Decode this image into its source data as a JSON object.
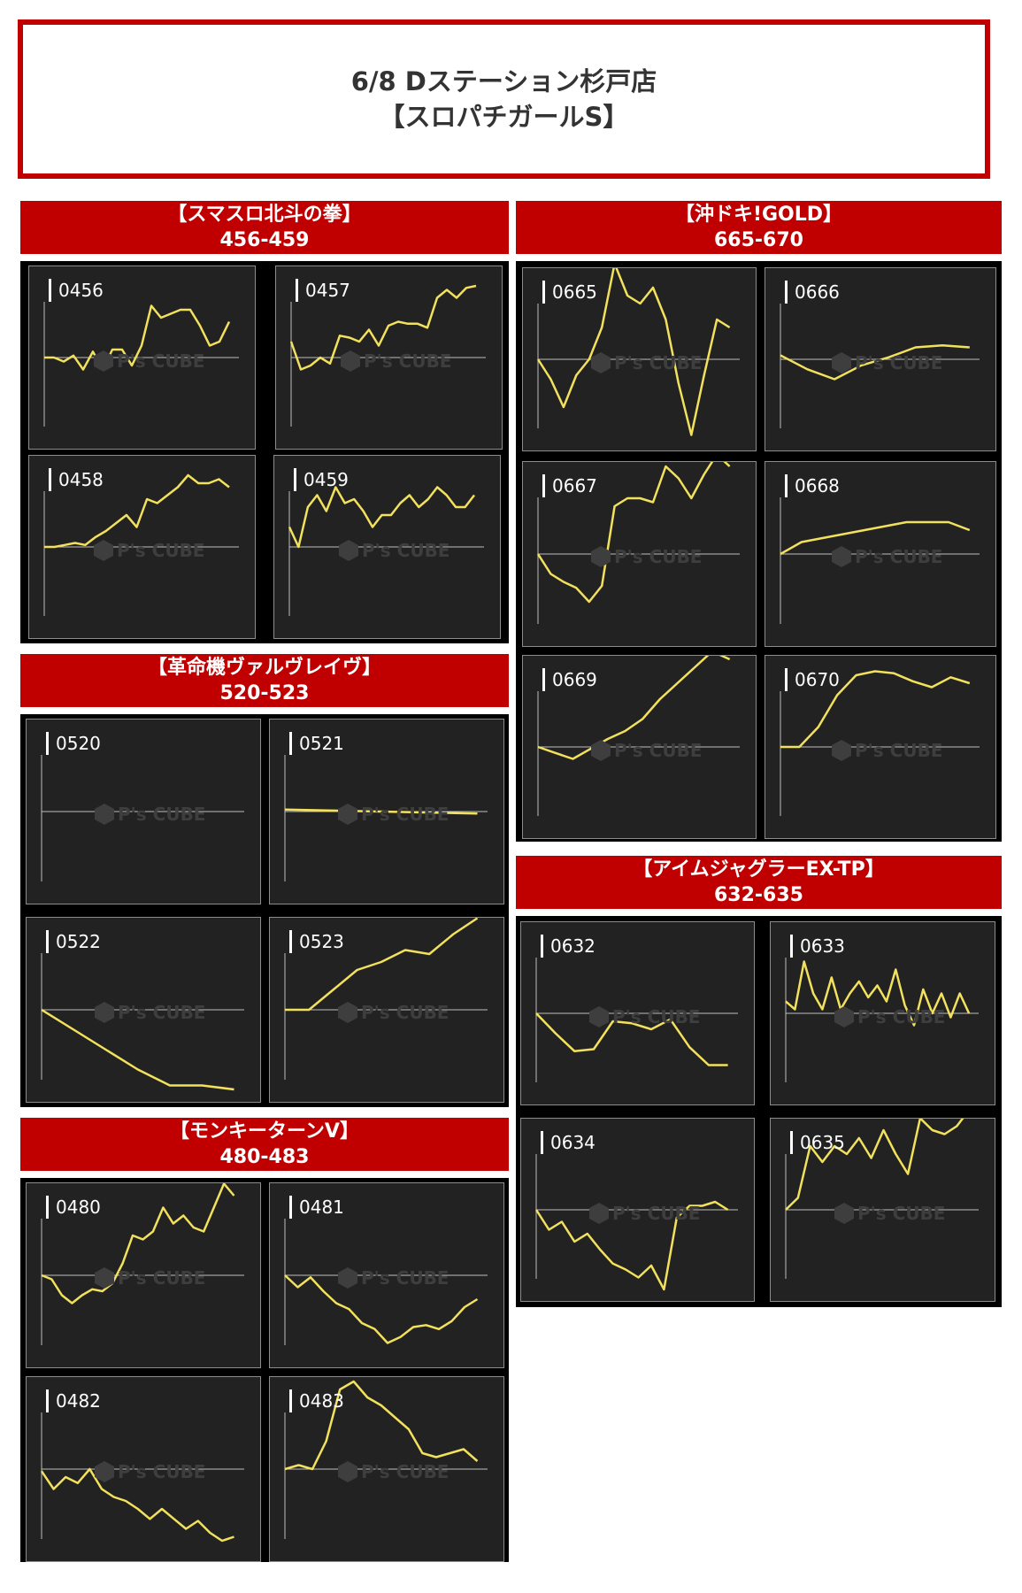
{
  "header": {
    "line1": "6/8 Dステーション杉戸店",
    "line2": "【スロパチガールS】"
  },
  "watermark": "P's CUBE",
  "line_color": "#f2e15c",
  "banner_color": "#c00000",
  "groups": [
    {
      "title": "【スマスロ北斗の拳】",
      "range": "456-459",
      "panels": [
        {
          "number": "0456"
        },
        {
          "number": "0457"
        },
        {
          "number": "0458"
        },
        {
          "number": "0459"
        }
      ]
    },
    {
      "title": "【革命機ヴァルヴレイヴ】",
      "range": "520-523",
      "panels": [
        {
          "number": "0520"
        },
        {
          "number": "0521"
        },
        {
          "number": "0522"
        },
        {
          "number": "0523"
        }
      ]
    },
    {
      "title": "【モンキーターンV】",
      "range": "480-483",
      "panels": [
        {
          "number": "0480"
        },
        {
          "number": "0481"
        },
        {
          "number": "0482"
        },
        {
          "number": "0483"
        }
      ]
    },
    {
      "title": "【沖ドキ!GOLD】",
      "range": "665-670",
      "panels": [
        {
          "number": "0665"
        },
        {
          "number": "0666"
        },
        {
          "number": "0667"
        },
        {
          "number": "0668"
        },
        {
          "number": "0669"
        },
        {
          "number": "0670"
        }
      ]
    },
    {
      "title": "【アイムジャグラーEX-TP】",
      "range": "632-635",
      "panels": [
        {
          "number": "0632"
        },
        {
          "number": "0633"
        },
        {
          "number": "0634"
        },
        {
          "number": "0635"
        }
      ]
    }
  ],
  "chart_data": [
    {
      "type": "line",
      "series_label": "0456",
      "y": [
        0.0,
        0.0,
        -0.1,
        0.05,
        -0.3,
        0.15,
        -0.3,
        0.2,
        0.2,
        -0.2,
        0.3,
        1.3,
        1.0,
        1.1,
        1.2,
        1.2,
        0.8,
        0.3,
        0.4,
        0.9
      ]
    },
    {
      "type": "line",
      "series_label": "0457",
      "y": [
        0.4,
        -0.3,
        -0.2,
        0.0,
        -0.15,
        0.55,
        0.5,
        0.4,
        0.7,
        0.3,
        0.8,
        0.9,
        0.85,
        0.85,
        0.75,
        1.5,
        1.7,
        1.5,
        1.75,
        1.8
      ]
    },
    {
      "type": "line",
      "series_label": "0458",
      "y": [
        0.0,
        0.0,
        0.05,
        0.1,
        0.05,
        0.25,
        0.4,
        0.6,
        0.8,
        0.5,
        1.2,
        1.1,
        1.3,
        1.5,
        1.8,
        1.6,
        1.6,
        1.7,
        1.5
      ]
    },
    {
      "type": "line",
      "series_label": "0459",
      "y": [
        0.5,
        0.0,
        1.0,
        1.3,
        0.9,
        1.5,
        1.1,
        1.2,
        0.9,
        0.5,
        0.8,
        0.8,
        1.1,
        1.3,
        1.0,
        1.2,
        1.5,
        1.3,
        1.0,
        1.0,
        1.3
      ]
    },
    {
      "type": "line",
      "series_label": "0520",
      "y": []
    },
    {
      "type": "line",
      "series_label": "0521",
      "y": [
        0.05,
        -0.05
      ]
    },
    {
      "type": "line",
      "series_label": "0522",
      "y": [
        0.0,
        -0.5,
        -1.0,
        -1.5,
        -1.9,
        -1.9,
        -2.0
      ]
    },
    {
      "type": "line",
      "series_label": "0523",
      "y": [
        0.0,
        0.0,
        0.5,
        1.0,
        1.2,
        1.5,
        1.4,
        1.9,
        2.3
      ]
    },
    {
      "type": "line",
      "series_label": "0480",
      "y": [
        0.0,
        -0.1,
        -0.5,
        -0.7,
        -0.5,
        -0.35,
        -0.4,
        -0.2,
        0.3,
        1.0,
        0.9,
        1.1,
        1.7,
        1.3,
        1.5,
        1.2,
        1.1,
        1.7,
        2.3,
        2.0
      ]
    },
    {
      "type": "line",
      "series_label": "0481",
      "y": [
        0.0,
        -0.3,
        -0.05,
        -0.4,
        -0.7,
        -0.85,
        -1.2,
        -1.35,
        -1.7,
        -1.55,
        -1.3,
        -1.25,
        -1.35,
        -1.15,
        -0.8,
        -0.6
      ]
    },
    {
      "type": "line",
      "series_label": "0482",
      "y": [
        -0.05,
        -0.5,
        -0.2,
        -0.35,
        0.0,
        -0.5,
        -0.7,
        -0.8,
        -1.0,
        -1.25,
        -1.0,
        -1.25,
        -1.5,
        -1.3,
        -1.6,
        -1.8,
        -1.7
      ]
    },
    {
      "type": "line",
      "series_label": "0483",
      "y": [
        0.0,
        0.1,
        0.0,
        0.7,
        2.0,
        2.2,
        1.8,
        1.6,
        1.3,
        1.0,
        0.4,
        0.3,
        0.4,
        0.5,
        0.2
      ]
    },
    {
      "type": "line",
      "series_label": "0665",
      "y": [
        0.0,
        -0.5,
        -1.2,
        -0.4,
        0.0,
        0.8,
        2.4,
        1.6,
        1.4,
        1.8,
        1.0,
        -0.6,
        -1.9,
        -0.4,
        1.0,
        0.8
      ]
    },
    {
      "type": "line",
      "series_label": "0666",
      "y": [
        0.1,
        -0.25,
        -0.5,
        -0.15,
        0.05,
        0.3,
        0.35,
        0.3
      ]
    },
    {
      "type": "line",
      "series_label": "0667",
      "y": [
        0.0,
        -0.5,
        -0.7,
        -0.85,
        -1.2,
        -0.8,
        1.2,
        1.4,
        1.4,
        1.3,
        2.2,
        1.9,
        1.4,
        2.0,
        2.5,
        2.2
      ]
    },
    {
      "type": "line",
      "series_label": "0668",
      "y": [
        0.0,
        0.3,
        0.4,
        0.5,
        0.6,
        0.7,
        0.8,
        0.8,
        0.8,
        0.6
      ]
    },
    {
      "type": "line",
      "series_label": "0669",
      "y": [
        0.0,
        -0.15,
        -0.3,
        -0.05,
        0.2,
        0.4,
        0.7,
        1.2,
        1.6,
        2.0,
        2.4,
        2.2
      ]
    },
    {
      "type": "line",
      "series_label": "0670",
      "y": [
        0.0,
        0.0,
        0.5,
        1.3,
        1.8,
        1.9,
        1.85,
        1.65,
        1.5,
        1.75,
        1.6
      ]
    },
    {
      "type": "line",
      "series_label": "0632",
      "y": [
        0.0,
        -0.5,
        -0.95,
        -0.9,
        -0.2,
        -0.25,
        -0.4,
        -0.15,
        -0.85,
        -1.3,
        -1.3
      ]
    },
    {
      "type": "line",
      "series_label": "0633",
      "y": [
        0.3,
        0.1,
        1.3,
        0.5,
        0.1,
        0.9,
        0.1,
        0.5,
        0.8,
        0.4,
        0.7,
        0.3,
        1.1,
        0.2,
        -0.3,
        0.6,
        0.0,
        0.5,
        -0.1,
        0.5,
        0.0
      ]
    },
    {
      "type": "line",
      "series_label": "0634",
      "y": [
        0.0,
        -0.5,
        -0.3,
        -0.8,
        -0.6,
        -1.0,
        -1.35,
        -1.5,
        -1.7,
        -1.4,
        -2.0,
        -0.2,
        0.1,
        0.1,
        0.2,
        0.0
      ]
    },
    {
      "type": "line",
      "series_label": "0635",
      "y": [
        0.0,
        0.3,
        1.6,
        1.2,
        1.6,
        1.4,
        1.8,
        1.3,
        2.0,
        1.4,
        0.9,
        2.3,
        2.0,
        1.9,
        2.1,
        2.5
      ]
    }
  ]
}
